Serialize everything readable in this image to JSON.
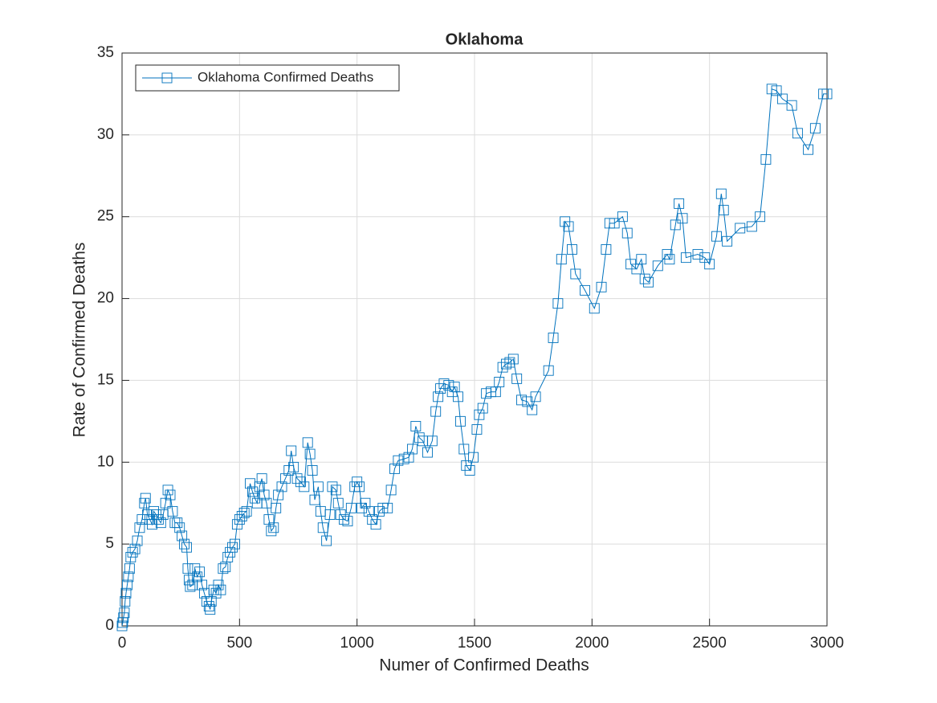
{
  "chart_data": {
    "type": "line",
    "title": "Oklahoma",
    "x_label": "Numer of Confirmed Deaths",
    "y_label": "Rate of Confirmed Deaths",
    "xlim": [
      0,
      3000
    ],
    "ylim": [
      0,
      35
    ],
    "xticks": [
      0,
      500,
      1000,
      1500,
      2000,
      2500,
      3000
    ],
    "yticks": [
      0,
      5,
      10,
      15,
      20,
      25,
      30,
      35
    ],
    "grid": true,
    "legend": "northwest",
    "marker": "square",
    "x": [
      0,
      3,
      6,
      10,
      13,
      17,
      22,
      27,
      32,
      37,
      45,
      55,
      65,
      75,
      85,
      95,
      100,
      108,
      118,
      128,
      135,
      145,
      155,
      165,
      175,
      185,
      195,
      205,
      215,
      225,
      235,
      245,
      255,
      265,
      275,
      280,
      285,
      290,
      300,
      310,
      320,
      330,
      340,
      350,
      360,
      370,
      375,
      380,
      390,
      400,
      410,
      420,
      430,
      440,
      450,
      460,
      470,
      480,
      490,
      500,
      510,
      520,
      530,
      545,
      555,
      565,
      575,
      585,
      595,
      605,
      615,
      625,
      635,
      645,
      655,
      665,
      680,
      695,
      710,
      720,
      730,
      745,
      760,
      775,
      790,
      800,
      810,
      820,
      835,
      845,
      855,
      870,
      885,
      895,
      910,
      920,
      930,
      945,
      960,
      975,
      990,
      1000,
      1010,
      1020,
      1035,
      1050,
      1065,
      1080,
      1095,
      1110,
      1130,
      1145,
      1160,
      1175,
      1200,
      1220,
      1235,
      1250,
      1265,
      1280,
      1300,
      1320,
      1335,
      1345,
      1355,
      1370,
      1390,
      1405,
      1415,
      1430,
      1440,
      1455,
      1465,
      1480,
      1495,
      1510,
      1520,
      1535,
      1550,
      1570,
      1590,
      1605,
      1620,
      1635,
      1650,
      1665,
      1680,
      1700,
      1725,
      1745,
      1760,
      1815,
      1835,
      1855,
      1870,
      1885,
      1900,
      1915,
      1930,
      1970,
      2010,
      2040,
      2060,
      2075,
      2095,
      2130,
      2150,
      2165,
      2190,
      2210,
      2225,
      2240,
      2280,
      2320,
      2330,
      2355,
      2370,
      2385,
      2400,
      2450,
      2480,
      2500,
      2530,
      2550,
      2560,
      2575,
      2630,
      2680,
      2715,
      2740,
      2765,
      2785,
      2810,
      2850,
      2875,
      2920,
      2950,
      2985,
      3000
    ],
    "series": [
      {
        "name": "Oklahoma Confirmed Deaths",
        "color": "#0072bd",
        "values": [
          0,
          0.2,
          0.5,
          0.8,
          1.5,
          2,
          2.5,
          3,
          3.5,
          4.2,
          4.5,
          4.7,
          5.2,
          6,
          6.5,
          7.5,
          7.8,
          6.8,
          6.5,
          6.2,
          7,
          6.8,
          6.5,
          6.3,
          6.8,
          7.5,
          8.3,
          8,
          7,
          6.3,
          6.3,
          6,
          5.5,
          5,
          4.8,
          3.5,
          2.8,
          2.4,
          2.5,
          3.5,
          3,
          3.3,
          2.5,
          2,
          1.5,
          1.2,
          1,
          1.5,
          2.2,
          2,
          2.5,
          2.2,
          3.5,
          3.6,
          4.2,
          4.5,
          4.8,
          5,
          6.2,
          6.5,
          6.7,
          6.9,
          7,
          8.7,
          8.2,
          7.8,
          7.5,
          8.5,
          9,
          8,
          7.5,
          6.5,
          5.8,
          6,
          7.2,
          8,
          8.5,
          9,
          9.5,
          10.7,
          9.7,
          9,
          8.8,
          8.5,
          11.2,
          10.5,
          9.5,
          7.7,
          8.5,
          7,
          6,
          5.2,
          6.8,
          8.5,
          8.3,
          7.5,
          6.8,
          6.5,
          6.4,
          7.2,
          8.5,
          8.8,
          8.5,
          7.2,
          7.5,
          7,
          6.5,
          6.2,
          7,
          7.2,
          7.2,
          8.3,
          9.6,
          10.1,
          10.2,
          10.3,
          10.8,
          12.2,
          11.5,
          11.3,
          10.6,
          11.3,
          13.1,
          14,
          14.5,
          14.8,
          14.7,
          14.3,
          14.6,
          14,
          12.5,
          10.8,
          9.8,
          9.5,
          10.3,
          12,
          12.9,
          13.3,
          14.2,
          14.3,
          14.3,
          14.9,
          15.8,
          16,
          16.1,
          16.3,
          15.1,
          13.8,
          13.7,
          13.2,
          14,
          15.6,
          17.6,
          19.7,
          22.4,
          24.7,
          24.4,
          23,
          21.5,
          20.5,
          19.4,
          20.7,
          23,
          24.6,
          24.6,
          25,
          24,
          22.1,
          21.8,
          22.4,
          21.2,
          21,
          22,
          22.7,
          22.4,
          24.5,
          25.8,
          24.9,
          22.5,
          22.7,
          22.5,
          22.1,
          23.8,
          26.4,
          25.4,
          23.5,
          24.3,
          24.4,
          25,
          28.5,
          32.8,
          32.7,
          32.2,
          31.8,
          30.1,
          29.1,
          30.4,
          32.5,
          32.5
        ]
      }
    ]
  }
}
